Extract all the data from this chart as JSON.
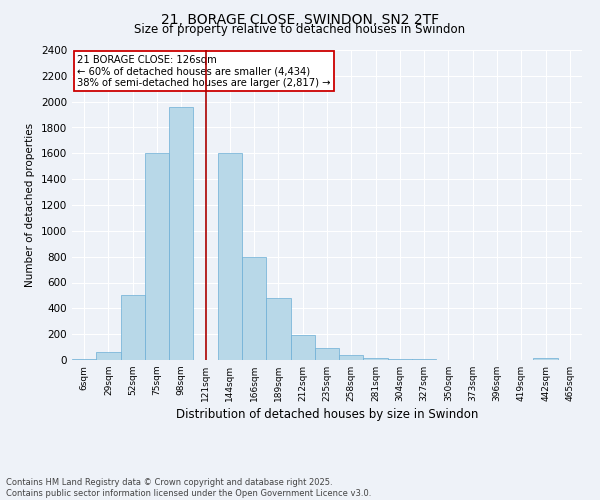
{
  "title": "21, BORAGE CLOSE, SWINDON, SN2 2TF",
  "subtitle": "Size of property relative to detached houses in Swindon",
  "xlabel": "Distribution of detached houses by size in Swindon",
  "ylabel": "Number of detached properties",
  "footer": "Contains HM Land Registry data © Crown copyright and database right 2025.\nContains public sector information licensed under the Open Government Licence v3.0.",
  "categories": [
    "6sqm",
    "29sqm",
    "52sqm",
    "75sqm",
    "98sqm",
    "121sqm",
    "144sqm",
    "166sqm",
    "189sqm",
    "212sqm",
    "235sqm",
    "258sqm",
    "281sqm",
    "304sqm",
    "327sqm",
    "350sqm",
    "373sqm",
    "396sqm",
    "419sqm",
    "442sqm",
    "465sqm"
  ],
  "values": [
    5,
    60,
    500,
    1600,
    1960,
    0,
    1600,
    800,
    480,
    190,
    90,
    35,
    15,
    10,
    5,
    3,
    2,
    0,
    0,
    15,
    0
  ],
  "bar_color": "#b8d8e8",
  "bar_edge_color": "#6baed6",
  "marker_label": "21 BORAGE CLOSE: 126sqm\n← 60% of detached houses are smaller (4,434)\n38% of semi-detached houses are larger (2,817) →",
  "vline_color": "#aa0000",
  "vline_x_index": 5,
  "ylim": [
    0,
    2400
  ],
  "yticks": [
    0,
    200,
    400,
    600,
    800,
    1000,
    1200,
    1400,
    1600,
    1800,
    2000,
    2200,
    2400
  ],
  "background_color": "#eef2f8",
  "grid_color": "#ffffff",
  "annotation_box_facecolor": "#ffffff",
  "annotation_box_edgecolor": "#cc0000"
}
